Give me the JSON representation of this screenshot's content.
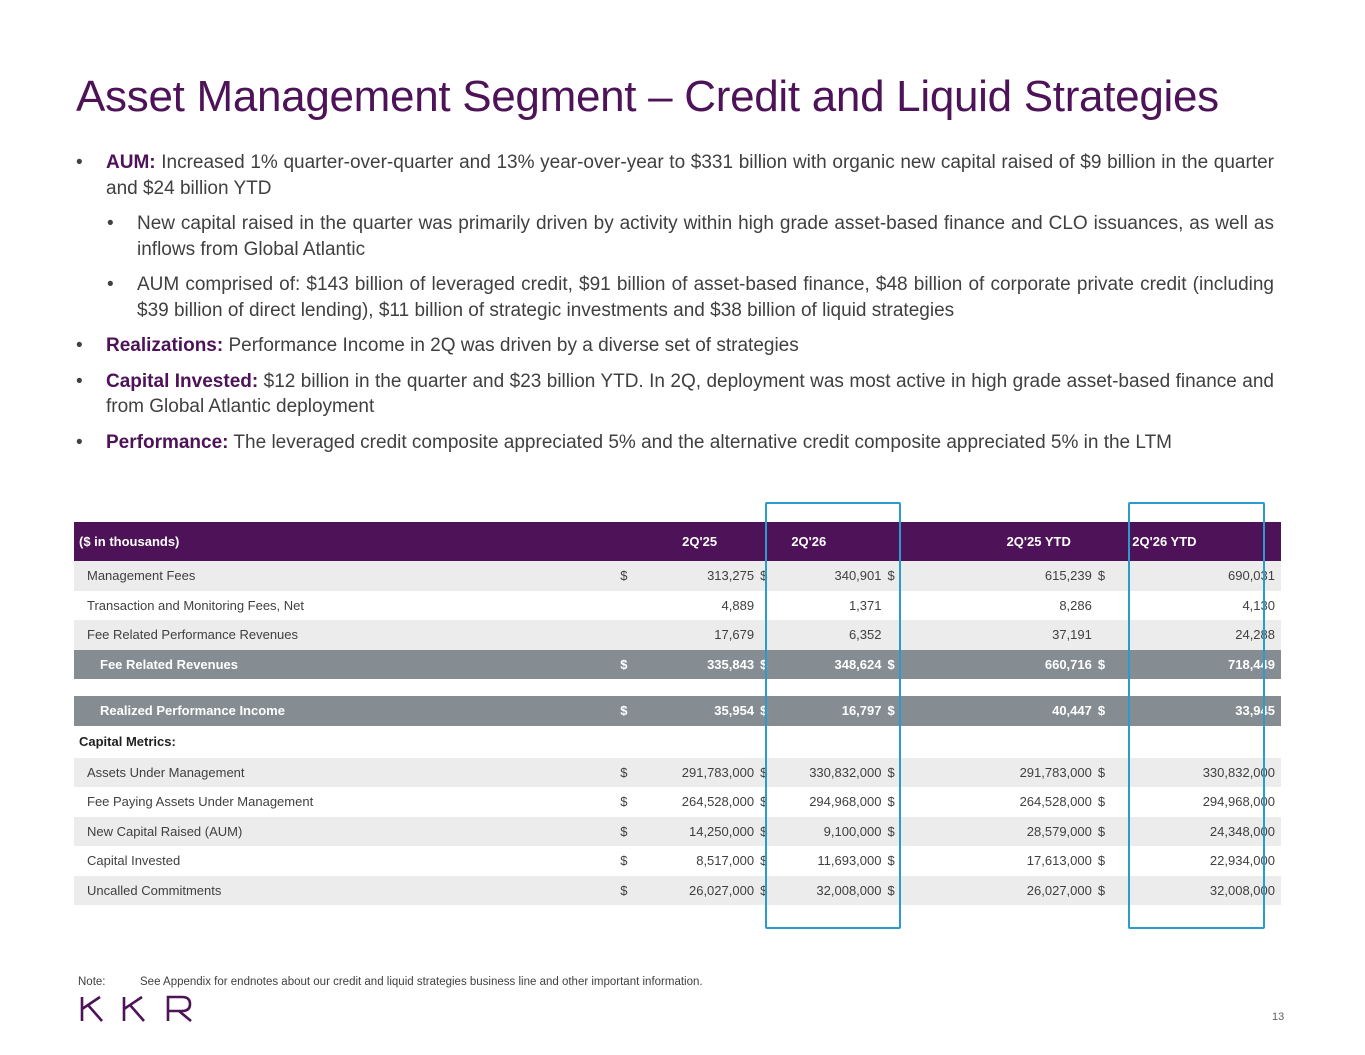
{
  "title": "Asset Management Segment – Credit and Liquid Strategies",
  "bullets": [
    {
      "level": 1,
      "label": "AUM:",
      "text": " Increased 1% quarter-over-quarter and 13% year-over-year to $331 billion with organic new capital raised of $9 billion in the quarter and $24 billion YTD"
    },
    {
      "level": 2,
      "label": "",
      "text": "New capital raised in the quarter was primarily driven by activity within high grade asset-based finance and CLO issuances, as well as inflows from Global Atlantic"
    },
    {
      "level": 2,
      "label": "",
      "text": "AUM comprised of: $143 billion of leveraged credit, $91 billion of asset-based finance, $48 billion of corporate private credit (including $39 billion of direct lending), $11 billion of strategic investments and $38 billion of liquid strategies"
    },
    {
      "level": 1,
      "label": "Realizations:",
      "text": " Performance Income in 2Q was driven by a diverse set of strategies"
    },
    {
      "level": 1,
      "label": "Capital Invested:",
      "text": " $12 billion in the quarter and $23 billion YTD. In 2Q, deployment was most active in high grade asset-based finance and from Global Atlantic deployment"
    },
    {
      "level": 1,
      "label": "Performance:",
      "text": " The leveraged credit composite appreciated 5% and the alternative credit composite appreciated 5% in the LTM"
    }
  ],
  "table": {
    "header": [
      "($ in thousands)",
      "2Q'25",
      "2Q'26",
      "2Q'25 YTD",
      "2Q'26 YTD"
    ],
    "rows": [
      {
        "type": "alt",
        "label": "Management Fees",
        "dollar": true,
        "values": [
          "313,275",
          "340,901",
          "615,239",
          "690,031"
        ]
      },
      {
        "type": "plain",
        "label": "Transaction and Monitoring Fees, Net",
        "dollar": false,
        "values": [
          "4,889",
          "1,371",
          "8,286",
          "4,130"
        ]
      },
      {
        "type": "alt",
        "label": "Fee Related Performance Revenues",
        "dollar": false,
        "values": [
          "17,679",
          "6,352",
          "37,191",
          "24,288"
        ]
      },
      {
        "type": "total",
        "label": "Fee Related Revenues",
        "dollar": true,
        "values": [
          "335,843",
          "348,624",
          "660,716",
          "718,449"
        ]
      },
      {
        "type": "spacer"
      },
      {
        "type": "total",
        "label": "Realized Performance Income",
        "dollar": true,
        "values": [
          "35,954",
          "16,797",
          "40,447",
          "33,945"
        ]
      },
      {
        "type": "section",
        "label": "Capital Metrics:"
      },
      {
        "type": "alt",
        "label": "Assets Under Management",
        "dollar": true,
        "values": [
          "291,783,000",
          "330,832,000",
          "291,783,000",
          "330,832,000"
        ]
      },
      {
        "type": "plain",
        "label": "Fee Paying Assets Under Management",
        "dollar": true,
        "values": [
          "264,528,000",
          "294,968,000",
          "264,528,000",
          "294,968,000"
        ]
      },
      {
        "type": "alt",
        "label": "New Capital Raised (AUM)",
        "dollar": true,
        "values": [
          "14,250,000",
          "9,100,000",
          "28,579,000",
          "24,348,000"
        ]
      },
      {
        "type": "plain",
        "label": "Capital Invested",
        "dollar": true,
        "values": [
          "8,517,000",
          "11,693,000",
          "17,613,000",
          "22,934,000"
        ]
      },
      {
        "type": "alt",
        "label": "Uncalled Commitments",
        "dollar": true,
        "values": [
          "26,027,000",
          "32,008,000",
          "26,027,000",
          "32,008,000"
        ]
      }
    ],
    "currency_symbol": "$"
  },
  "note": {
    "label": "Note:",
    "text": "See Appendix for endnotes about our credit and liquid strategies business line and other important information."
  },
  "logo_text": "KKR",
  "page_number": "13",
  "colors": {
    "brand_purple": "#4d1257",
    "total_row_gray": "#858d93",
    "highlight_blue": "#2a9bcc",
    "alt_row": "#ececec"
  }
}
